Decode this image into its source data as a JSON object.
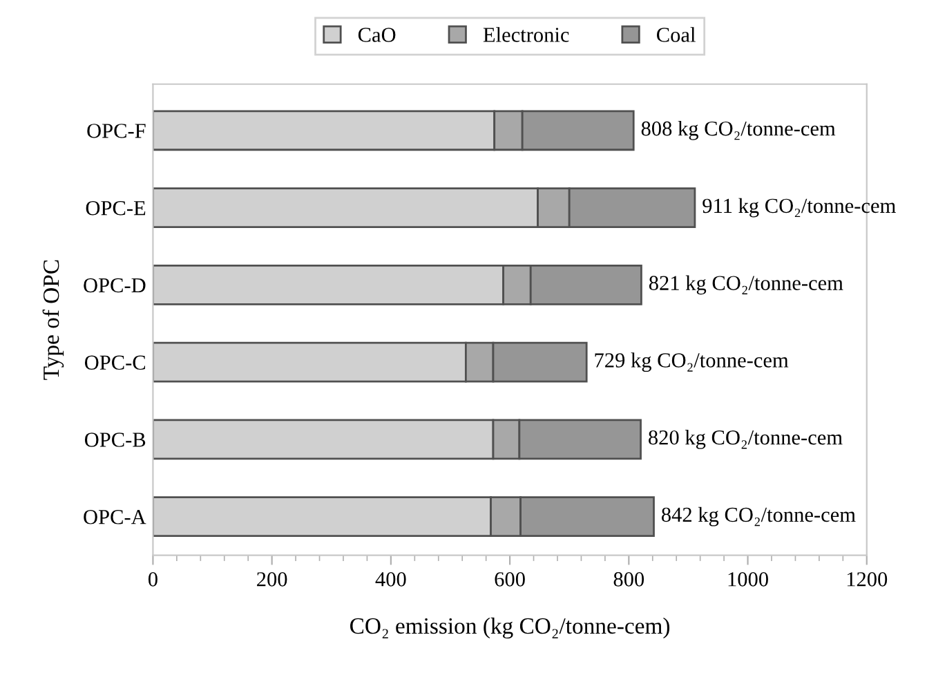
{
  "chart_data": {
    "type": "bar",
    "orientation": "horizontal",
    "stacked": true,
    "categories": [
      "OPC-F",
      "OPC-E",
      "OPC-D",
      "OPC-C",
      "OPC-B",
      "OPC-A"
    ],
    "series": [
      {
        "name": "CaO",
        "color": "#d0d0d0",
        "values": [
          574,
          647,
          589,
          526,
          572,
          568
        ]
      },
      {
        "name": "Electronic",
        "color": "#a8a8a8",
        "values": [
          47,
          53,
          46,
          46,
          44,
          50
        ]
      },
      {
        "name": "Coal",
        "color": "#969696",
        "values": [
          187,
          211,
          186,
          157,
          204,
          224
        ]
      }
    ],
    "totals": [
      "808 kg CO₂/tonne-cem",
      "911 kg CO₂/tonne-cem",
      "821 kg CO₂/tonne-cem",
      "729 kg CO₂/tonne-cem",
      "820 kg CO₂/tonne-cem",
      "842 kg CO₂/tonne-cem"
    ],
    "xlim": [
      0,
      1200
    ],
    "xticks": [
      0,
      200,
      400,
      600,
      800,
      1000,
      1200
    ],
    "xlabel": "CO₂ emission (kg CO₂/tonne-cem)",
    "ylabel": "Type of OPC",
    "legend": "top",
    "grid": false
  }
}
